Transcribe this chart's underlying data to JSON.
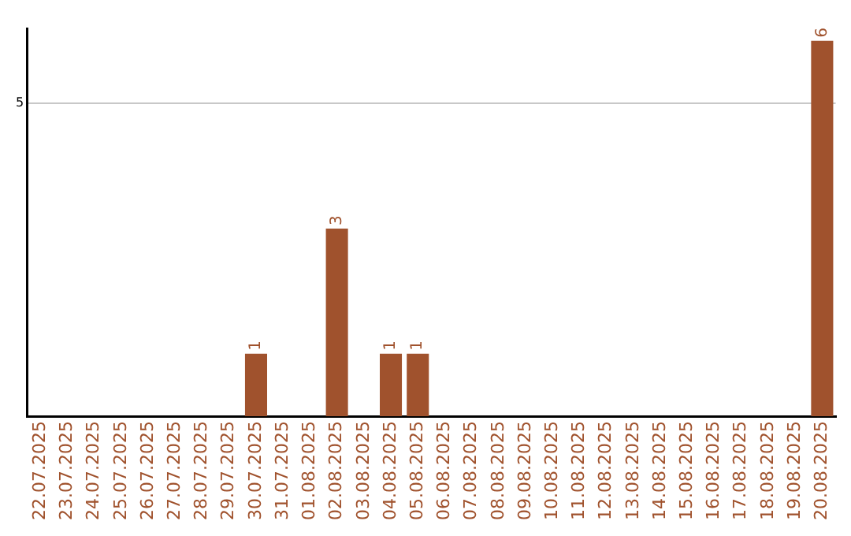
{
  "chart_data": {
    "type": "bar",
    "categories": [
      "22.07.2025",
      "23.07.2025",
      "24.07.2025",
      "25.07.2025",
      "26.07.2025",
      "27.07.2025",
      "28.07.2025",
      "29.07.2025",
      "30.07.2025",
      "31.07.2025",
      "01.08.2025",
      "02.08.2025",
      "03.08.2025",
      "04.08.2025",
      "05.08.2025",
      "06.08.2025",
      "07.08.2025",
      "08.08.2025",
      "09.08.2025",
      "10.08.2025",
      "11.08.2025",
      "12.08.2025",
      "13.08.2025",
      "14.08.2025",
      "15.08.2025",
      "16.08.2025",
      "17.08.2025",
      "18.08.2025",
      "19.08.2025",
      "20.08.2025"
    ],
    "values": [
      0,
      0,
      0,
      0,
      0,
      0,
      0,
      0,
      1,
      0,
      0,
      3,
      0,
      1,
      1,
      0,
      0,
      0,
      0,
      0,
      0,
      0,
      0,
      0,
      0,
      0,
      0,
      0,
      0,
      6
    ],
    "value_labels": [
      null,
      null,
      null,
      null,
      null,
      null,
      null,
      null,
      "1",
      null,
      null,
      "3",
      null,
      "1",
      "1",
      null,
      null,
      null,
      null,
      null,
      null,
      null,
      null,
      null,
      null,
      null,
      null,
      null,
      null,
      "6"
    ],
    "color": "#a0522d",
    "ylim": [
      0,
      6.2
    ],
    "yticks": [
      5
    ],
    "grid": "y",
    "legend": false
  }
}
